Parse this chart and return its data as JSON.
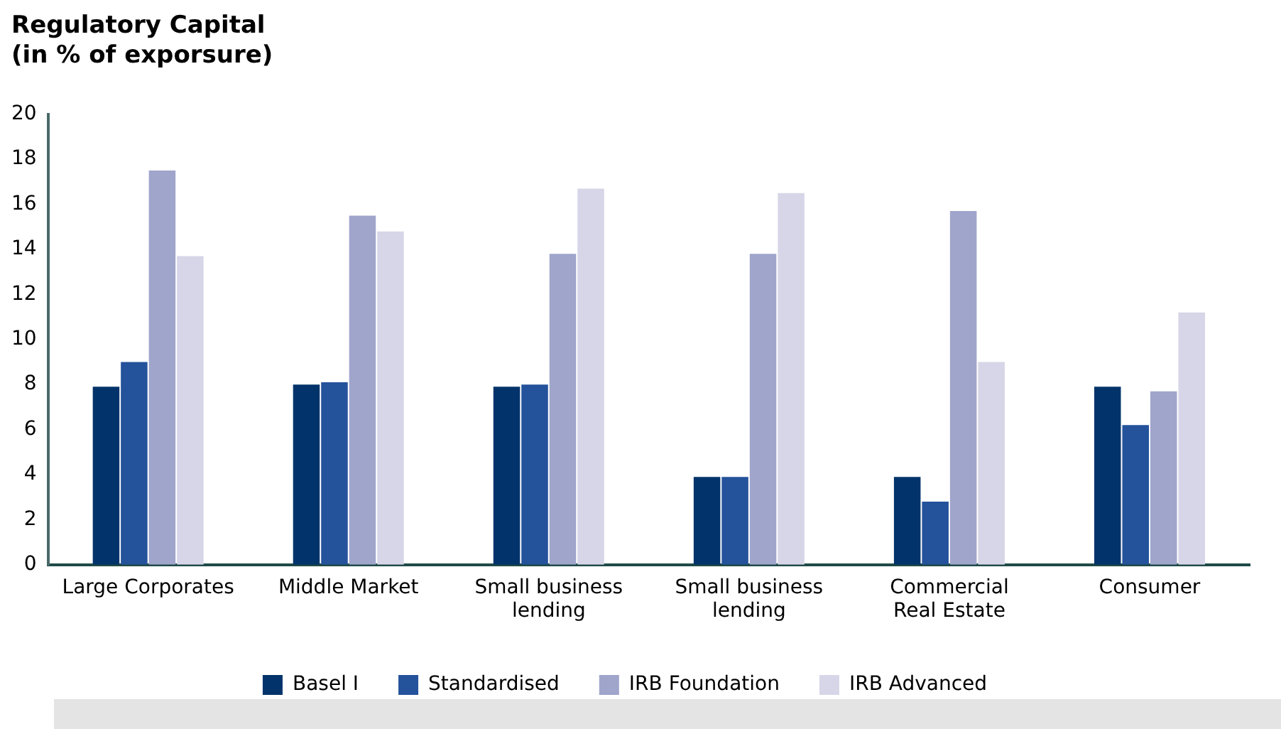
{
  "chart_data": {
    "type": "bar",
    "title": "Regulatory Capital",
    "subtitle": "(in % of exporsure)",
    "categories": [
      "Large Corporates",
      "Middle Market",
      "Small business\nlending",
      "Small business\nlending",
      "Commercial\nReal Estate",
      "Consumer"
    ],
    "series": [
      {
        "name": "Basel I",
        "color": "#02336a",
        "values": [
          7.9,
          8.0,
          7.9,
          3.9,
          3.9,
          7.9
        ]
      },
      {
        "name": "Standardised",
        "color": "#24529b",
        "values": [
          9.0,
          8.1,
          8.0,
          3.9,
          2.8,
          6.2
        ]
      },
      {
        "name": "IRB Foundation",
        "color": "#9fa5cb",
        "values": [
          17.5,
          15.5,
          13.8,
          13.8,
          15.7,
          7.7
        ]
      },
      {
        "name": "IRB Advanced",
        "color": "#d6d6e8",
        "values": [
          13.7,
          14.8,
          16.7,
          16.5,
          9.0,
          11.2
        ]
      }
    ],
    "ylim": [
      0,
      20
    ],
    "yticks": [
      0,
      2,
      4,
      6,
      8,
      10,
      12,
      14,
      16,
      18,
      20
    ],
    "grid": false,
    "legend": "bottom"
  }
}
